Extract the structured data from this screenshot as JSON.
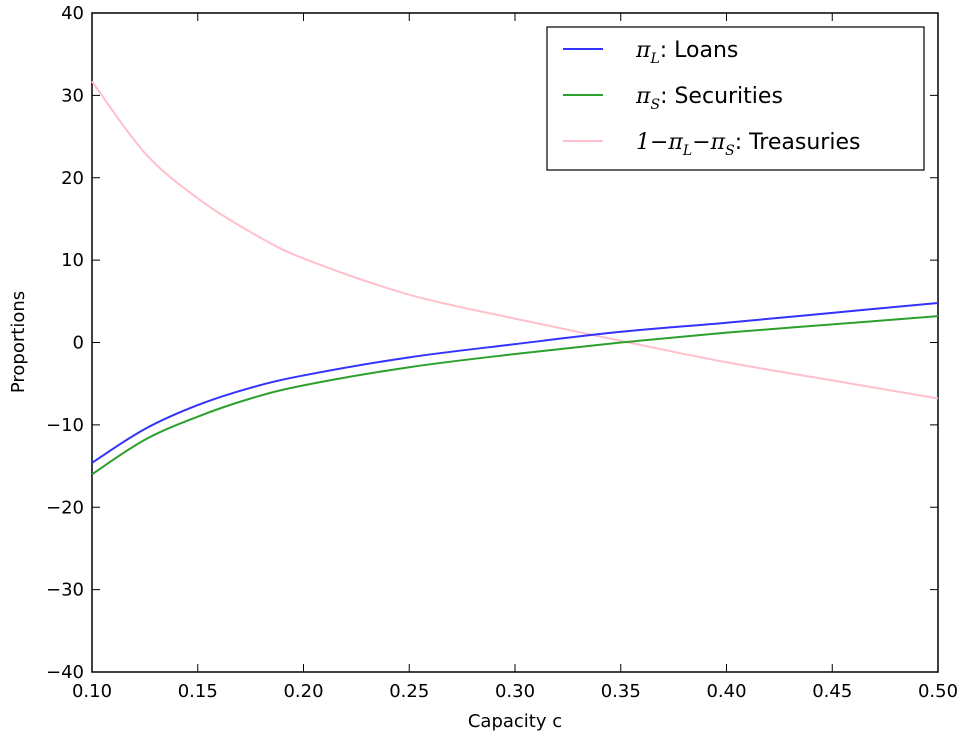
{
  "chart_data": {
    "type": "line",
    "title": "",
    "xlabel": "Capacity c",
    "ylabel": "Proportions",
    "xlim": [
      0.1,
      0.5
    ],
    "ylim": [
      -40,
      40
    ],
    "x_ticks": [
      "0.10",
      "0.15",
      "0.20",
      "0.25",
      "0.30",
      "0.35",
      "0.40",
      "0.45",
      "0.50"
    ],
    "y_ticks": [
      "−40",
      "−30",
      "−20",
      "−10",
      "0",
      "10",
      "20",
      "30",
      "40"
    ],
    "x": [
      0.1,
      0.125,
      0.15,
      0.175,
      0.2,
      0.25,
      0.3,
      0.35,
      0.4,
      0.45,
      0.5
    ],
    "grid": false,
    "legend_position": "top-right",
    "series": [
      {
        "name_main": "π",
        "name_sub": "L",
        "name_suffix": ": Loans",
        "color": "#3333ff",
        "values": [
          -14.6,
          -10.5,
          -7.6,
          -5.5,
          -4.0,
          -1.8,
          -0.2,
          1.3,
          2.4,
          3.6,
          4.8
        ]
      },
      {
        "name_main": "π",
        "name_sub": "S",
        "name_suffix": ": Securities",
        "color": "#2ca02c",
        "values": [
          -16.0,
          -11.8,
          -9.0,
          -6.8,
          -5.2,
          -3.0,
          -1.4,
          0.0,
          1.2,
          2.2,
          3.2
        ]
      },
      {
        "name_prefix": "1−π",
        "name_sub1": "L",
        "name_mid": "−π",
        "name_sub2": "S",
        "name_suffix": ": Treasuries",
        "color": "#ffc0cb",
        "values": [
          31.7,
          23.0,
          17.5,
          13.4,
          10.2,
          5.8,
          2.9,
          0.2,
          -2.4,
          -4.6,
          -6.8
        ]
      }
    ]
  }
}
